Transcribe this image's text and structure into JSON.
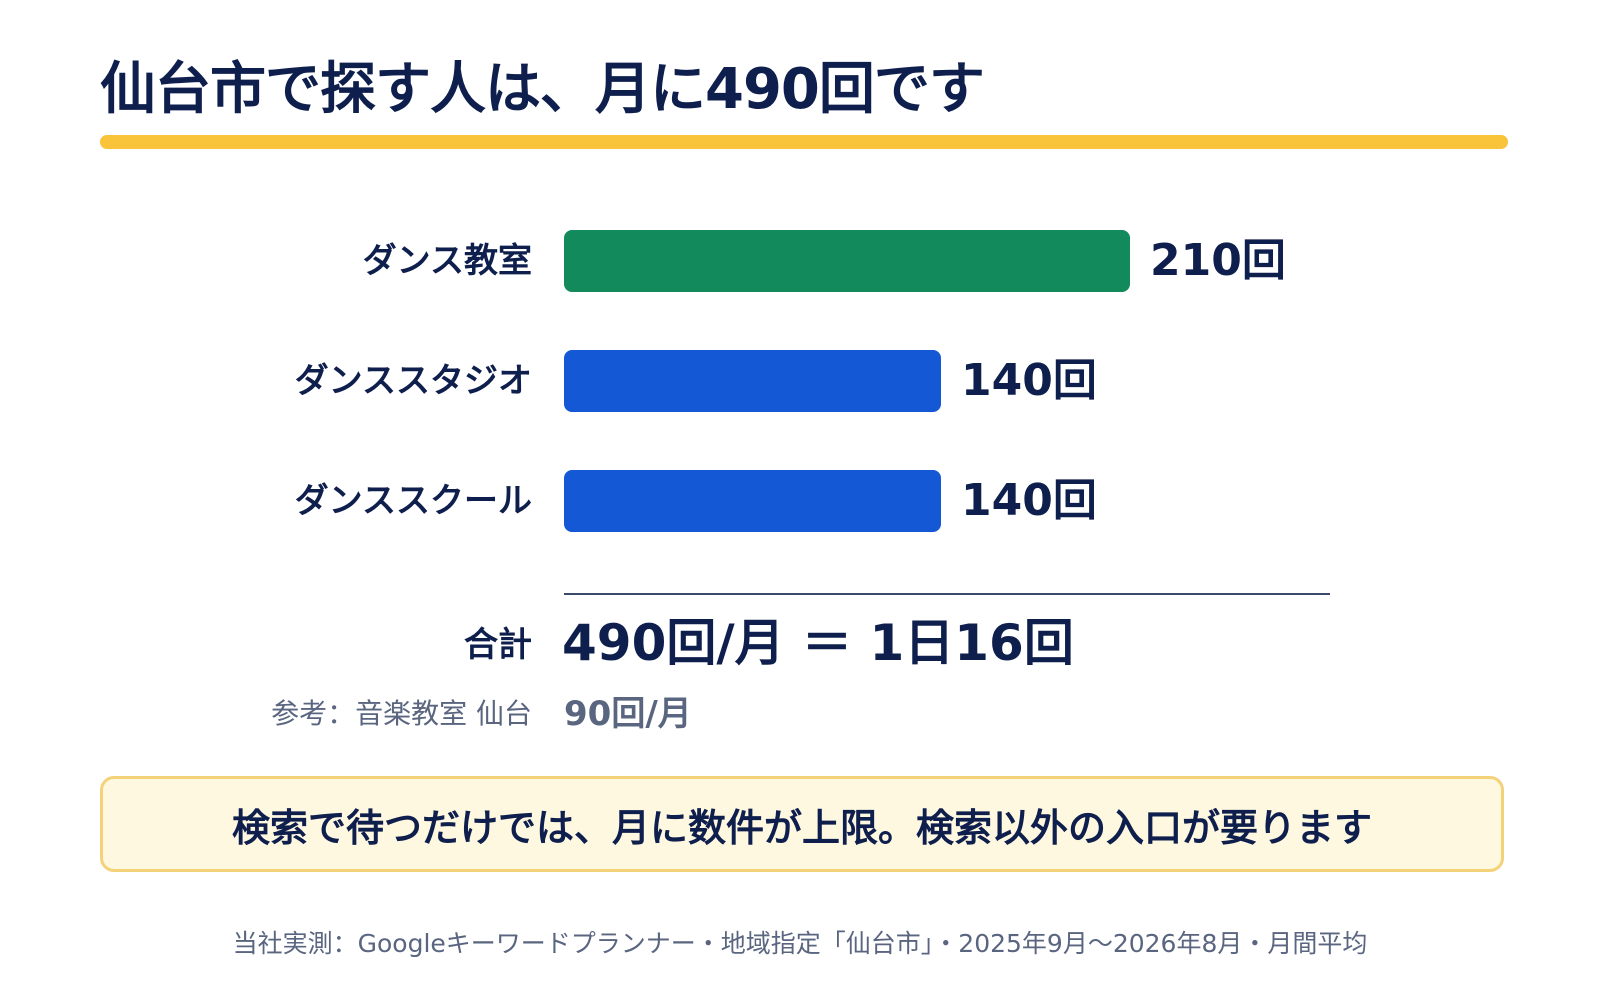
{
  "title": "仙台市で探す人は、月に490回です",
  "colors": {
    "title_rule": "#f9c43a",
    "highlight_bar": "#128a5c",
    "bar": "#1558d6",
    "text": "#0f1f4d",
    "muted": "#5a6580",
    "callout_bg": "#fff8e1",
    "callout_border": "#f3d27a"
  },
  "chart_data": {
    "type": "bar",
    "orientation": "horizontal",
    "categories": [
      "ダンス教室",
      "ダンススタジオ",
      "ダンススクール"
    ],
    "values": [
      210,
      140,
      140
    ],
    "value_labels": [
      "210回",
      "140回",
      "140回"
    ],
    "unit": "回",
    "highlight_index": 0,
    "xlim": [
      0,
      210
    ],
    "grid": false
  },
  "total": {
    "label": "合計",
    "value": "490回/月 ＝ 1日16回"
  },
  "reference": {
    "label": "参考：音楽教室 仙台",
    "value": "90回/月"
  },
  "callout": "検索で待つだけでは、月に数件が上限。検索以外の入口が要ります",
  "source": "当社実測：Googleキーワードプランナー・地域指定「仙台市」・2025年9月〜2026年8月・月間平均"
}
